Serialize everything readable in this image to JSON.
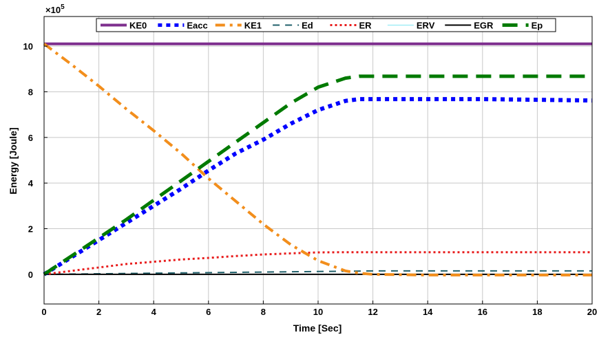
{
  "chart_data": {
    "type": "line",
    "xlabel": "Time [Sec]",
    "ylabel": "Energy [Joule]",
    "exponent_base": "×10",
    "exponent_power": "5",
    "xlim": [
      0,
      20
    ],
    "ylim": [
      -1.3,
      11.3
    ],
    "xticks": [
      0,
      2,
      4,
      6,
      8,
      10,
      12,
      14,
      16,
      18,
      20
    ],
    "yticks": [
      0,
      2,
      4,
      6,
      8,
      10
    ],
    "grid": true,
    "legend_position": "top",
    "series": [
      {
        "name": "KE0",
        "color": "#7e2f8e",
        "style": "solid",
        "x": [
          0,
          20
        ],
        "y": [
          10.1,
          10.1
        ]
      },
      {
        "name": "Eacc",
        "color": "#0000ff",
        "style": "dotted",
        "x": [
          0,
          1,
          2,
          3,
          4,
          5,
          6,
          7,
          8,
          9,
          10,
          11,
          11.5,
          12,
          14,
          16,
          18,
          20
        ],
        "y": [
          0,
          0.75,
          1.5,
          2.25,
          3.0,
          3.75,
          4.55,
          5.3,
          5.9,
          6.6,
          7.2,
          7.6,
          7.68,
          7.68,
          7.68,
          7.68,
          7.65,
          7.62
        ]
      },
      {
        "name": "KE1",
        "color": "#f28e1c",
        "style": "dashdot",
        "x": [
          0,
          1,
          2,
          3,
          4,
          5,
          6,
          7,
          8,
          9,
          10,
          11,
          11.5,
          12,
          14,
          16,
          18,
          20
        ],
        "y": [
          10.1,
          9.2,
          8.25,
          7.25,
          6.3,
          5.3,
          4.2,
          3.2,
          2.2,
          1.3,
          0.6,
          0.15,
          0.05,
          0.0,
          -0.03,
          -0.03,
          -0.03,
          -0.03
        ]
      },
      {
        "name": "Ed",
        "color": "#1f5f6a",
        "style": "dashed",
        "x": [
          0,
          4,
          8,
          12,
          16,
          20
        ],
        "y": [
          0,
          0.05,
          0.1,
          0.15,
          0.15,
          0.15
        ]
      },
      {
        "name": "ER",
        "color": "#e81c1c",
        "style": "dotted",
        "x": [
          0,
          1,
          2,
          3,
          4,
          5,
          6,
          7,
          8,
          9,
          10,
          11,
          12,
          14,
          16,
          18,
          20
        ],
        "y": [
          0,
          0.15,
          0.3,
          0.45,
          0.55,
          0.65,
          0.72,
          0.8,
          0.87,
          0.92,
          0.96,
          0.97,
          0.97,
          0.97,
          0.97,
          0.97,
          0.97
        ]
      },
      {
        "name": "ERV",
        "color": "#7fe6f2",
        "style": "solid",
        "x": [
          0,
          20
        ],
        "y": [
          0.0,
          0.0
        ]
      },
      {
        "name": "EGR",
        "color": "#000000",
        "style": "solid",
        "x": [
          0,
          20
        ],
        "y": [
          0.0,
          0.0
        ]
      },
      {
        "name": "Ep",
        "color": "#007a00",
        "style": "dashed",
        "x": [
          0,
          1,
          2,
          3,
          4,
          5,
          6,
          7,
          8,
          9,
          10,
          11,
          11.5,
          12,
          14,
          16,
          18,
          20
        ],
        "y": [
          0,
          0.8,
          1.6,
          2.4,
          3.25,
          4.1,
          4.95,
          5.8,
          6.65,
          7.5,
          8.2,
          8.6,
          8.68,
          8.68,
          8.68,
          8.68,
          8.68,
          8.68
        ]
      }
    ]
  }
}
